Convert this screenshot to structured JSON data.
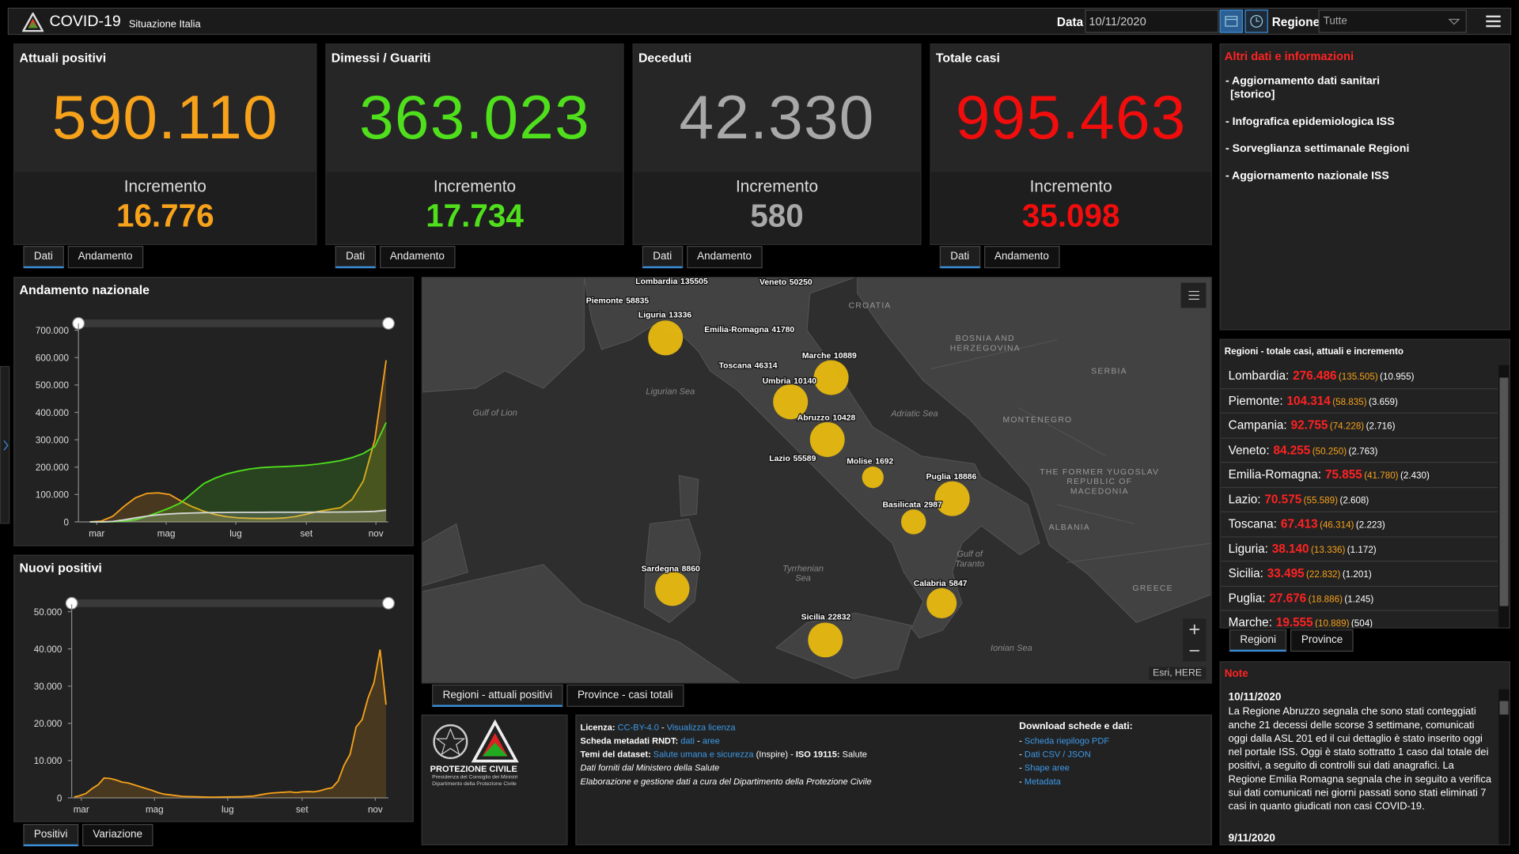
{
  "header": {
    "title": "COVID-19",
    "subtitle": "Situazione Italia",
    "date_label": "Data",
    "date": "10/11/2020",
    "region_label": "Regione",
    "region": "Tutte"
  },
  "cards": [
    {
      "title": "Attuali positivi",
      "value": "590.110",
      "increment_label": "Incremento",
      "increment": "16.776",
      "color": "#f7a21b",
      "tabs": [
        "Dati",
        "Andamento"
      ]
    },
    {
      "title": "Dimessi / Guariti",
      "value": "363.023",
      "increment_label": "Incremento",
      "increment": "17.734",
      "color": "#4fdf1c",
      "tabs": [
        "Dati",
        "Andamento"
      ]
    },
    {
      "title": "Deceduti",
      "value": "42.330",
      "increment_label": "Incremento",
      "increment": "580",
      "color": "#a8a8a8",
      "tabs": [
        "Dati",
        "Andamento"
      ]
    },
    {
      "title": "Totale casi",
      "value": "995.463",
      "increment_label": "Incremento",
      "increment": "35.098",
      "color": "#f20d0d",
      "tabs": [
        "Dati",
        "Andamento"
      ]
    }
  ],
  "info_links": {
    "title": "Altri dati e informazioni",
    "items": [
      [
        "- Aggiornamento dati sanitari",
        "[storico]"
      ],
      [
        "- Infografica epidemiologica ISS"
      ],
      [
        "- Sorveglianza settimanale Regioni"
      ],
      [
        "- Aggiornamento nazionale ISS"
      ]
    ]
  },
  "charts": [
    {
      "type": "line",
      "title": "Andamento nazionale",
      "x": [
        0,
        10,
        20,
        30,
        40,
        50,
        60,
        70,
        80,
        90,
        100,
        110,
        120,
        130,
        140,
        150,
        160,
        170,
        180,
        190,
        200,
        210,
        220,
        230,
        240,
        250,
        260
      ],
      "xlim": [
        -10,
        262
      ],
      "xticks": [
        {
          "value": 6,
          "label": "mar"
        },
        {
          "value": 67,
          "label": "mag"
        },
        {
          "value": 128,
          "label": "lug"
        },
        {
          "value": 190,
          "label": "set"
        },
        {
          "value": 251,
          "label": "nov"
        }
      ],
      "ylim": [
        0,
        725000
      ],
      "yticks": [
        0,
        {
          "value": 100000,
          "label": "100.000"
        },
        {
          "value": 200000,
          "label": "200.000"
        },
        {
          "value": 300000,
          "label": "300.000"
        },
        {
          "value": 400000,
          "label": "400.000"
        },
        {
          "value": 500000,
          "label": "500.000"
        },
        {
          "value": 600000,
          "label": "600.000"
        },
        {
          "value": 700000,
          "label": "700.000"
        }
      ],
      "area": true,
      "series": [
        {
          "color": "#f7a21b",
          "values": [
            200,
            3000,
            20000,
            57000,
            88000,
            104000,
            106000,
            100000,
            76000,
            55000,
            39000,
            27000,
            19000,
            15000,
            13000,
            12500,
            12500,
            14000,
            19000,
            28000,
            38000,
            45000,
            52000,
            82000,
            150000,
            300000,
            590110
          ]
        },
        {
          "color": "#4fdf1c",
          "values": [
            0,
            50,
            600,
            2500,
            8000,
            20000,
            35000,
            51000,
            70000,
            105000,
            140000,
            160000,
            175000,
            185000,
            193000,
            198000,
            200500,
            202000,
            204000,
            207000,
            211000,
            217000,
            224000,
            235000,
            250000,
            275000,
            363023
          ]
        },
        {
          "color": "#d8d8d8",
          "values": [
            7,
            150,
            1800,
            7500,
            15000,
            21000,
            26000,
            29000,
            31000,
            32500,
            33500,
            34300,
            34700,
            34900,
            35000,
            35100,
            35200,
            35300,
            35400,
            35500,
            35600,
            35800,
            36000,
            36300,
            37000,
            38600,
            42330
          ]
        }
      ]
    },
    {
      "type": "line",
      "title": "Nuovi positivi",
      "x": [
        0,
        5,
        10,
        15,
        20,
        25,
        30,
        35,
        40,
        45,
        50,
        55,
        60,
        65,
        70,
        75,
        80,
        85,
        90,
        95,
        100,
        105,
        110,
        115,
        120,
        125,
        130,
        135,
        140,
        145,
        150,
        155,
        160,
        165,
        170,
        175,
        180,
        185,
        190,
        195,
        200,
        205,
        210,
        215,
        220,
        225,
        230,
        235,
        240,
        245,
        250,
        255,
        260
      ],
      "xlim": [
        -2,
        262
      ],
      "xticks": [
        {
          "value": 6,
          "label": "mar"
        },
        {
          "value": 67,
          "label": "mag"
        },
        {
          "value": 128,
          "label": "lug"
        },
        {
          "value": 190,
          "label": "set"
        },
        {
          "value": 251,
          "label": "nov"
        }
      ],
      "ylim": [
        0,
        52000
      ],
      "yticks": [
        0,
        {
          "value": 10000,
          "label": "10.000"
        },
        {
          "value": 20000,
          "label": "20.000"
        },
        {
          "value": 30000,
          "label": "30.000"
        },
        {
          "value": 40000,
          "label": "40.000"
        },
        {
          "value": 50000,
          "label": "50.000"
        }
      ],
      "area": true,
      "series": [
        {
          "color": "#f7a21b",
          "values": [
            200,
            600,
            1200,
            2500,
            3500,
            5300,
            5200,
            4800,
            4200,
            4000,
            3500,
            3000,
            2500,
            2000,
            1400,
            1000,
            800,
            600,
            400,
            350,
            300,
            250,
            200,
            180,
            200,
            230,
            250,
            280,
            300,
            380,
            500,
            800,
            1100,
            1300,
            1400,
            1500,
            1600,
            1400,
            1600,
            1700,
            1600,
            1900,
            2400,
            2700,
            4500,
            8800,
            11700,
            19000,
            21000,
            26800,
            31000,
            39800,
            25000
          ]
        }
      ]
    }
  ],
  "chart_tabs": [
    "Positivi",
    "Variazione"
  ],
  "map": {
    "points": [
      {
        "name": "Lombardia",
        "value": 135505
      },
      {
        "name": "Veneto",
        "value": 50250
      },
      {
        "name": "Piemonte",
        "value": 58835
      },
      {
        "name": "Liguria",
        "value": 13336
      },
      {
        "name": "Emilia-Romagna",
        "value": 41780
      },
      {
        "name": "Toscana",
        "value": 46314
      },
      {
        "name": "Marche",
        "value": 10889
      },
      {
        "name": "Umbria",
        "value": 10140
      },
      {
        "name": "Abruzzo",
        "value": 10428
      },
      {
        "name": "Lazio",
        "value": 55589
      },
      {
        "name": "Molise",
        "value": 1692
      },
      {
        "name": "Puglia",
        "value": 18886
      },
      {
        "name": "Basilicata",
        "value": 2987
      },
      {
        "name": "Sardegna",
        "value": 8860
      },
      {
        "name": "Calabria",
        "value": 5847
      },
      {
        "name": "Sicilia",
        "value": 22832
      }
    ],
    "point_color": "#e8b90f",
    "places": [
      [
        "CROATIA"
      ],
      [
        "BOSNIA AND",
        "HERZEGOVINA"
      ],
      [
        "SERBIA"
      ],
      [
        "MONTENEGRO"
      ],
      [
        "ALBANIA"
      ],
      [
        "THE FORMER YUGOSLAV",
        "REPUBLIC OF",
        "MACEDONIA"
      ],
      [
        "GREECE"
      ]
    ],
    "seas": [
      [
        "Gulf of Lion"
      ],
      [
        "Ligurian Sea"
      ],
      [
        "Adriatic Sea"
      ],
      [
        "Tyrrhenian",
        "Sea"
      ],
      [
        "Gulf of",
        "Taranto"
      ],
      [
        "Ionian Sea"
      ]
    ],
    "attribution": "Esri, HERE",
    "tabs": [
      "Regioni - attuali positivi",
      "Province - casi totali"
    ]
  },
  "regions": {
    "title": "Regioni - totale casi, attuali e incremento",
    "rows": [
      {
        "name": "Lombardia:",
        "total": "276.486",
        "current": "(135.505)",
        "increment": "(10.955)"
      },
      {
        "name": "Piemonte:",
        "total": "104.314",
        "current": "(58.835)",
        "increment": "(3.659)"
      },
      {
        "name": "Campania:",
        "total": "92.755",
        "current": "(74.228)",
        "increment": "(2.716)"
      },
      {
        "name": "Veneto:",
        "total": "84.255",
        "current": "(50.250)",
        "increment": "(2.763)"
      },
      {
        "name": "Emilia-Romagna:",
        "total": "75.855",
        "current": "(41.780)",
        "increment": "(2.430)"
      },
      {
        "name": "Lazio:",
        "total": "70.575",
        "current": "(55.589)",
        "increment": "(2.608)"
      },
      {
        "name": "Toscana:",
        "total": "67.413",
        "current": "(46.314)",
        "increment": "(2.223)"
      },
      {
        "name": "Liguria:",
        "total": "38.140",
        "current": "(13.336)",
        "increment": "(1.172)"
      },
      {
        "name": "Sicilia:",
        "total": "33.495",
        "current": "(22.832)",
        "increment": "(1.201)"
      },
      {
        "name": "Puglia:",
        "total": "27.676",
        "current": "(18.886)",
        "increment": "(1.245)"
      },
      {
        "name": "Marche:",
        "total": "19.555",
        "current": "(10.889)",
        "increment": "(504)"
      }
    ],
    "tabs": [
      "Regioni",
      "Province"
    ]
  },
  "notes": {
    "title": "Note",
    "entries": [
      {
        "date": "10/11/2020",
        "text": "La Regione Abruzzo segnala che sono stati conteggiati anche 21 decessi delle scorse 3 settimane, comunicati oggi dalla ASL 201 ed il cui dettaglio è stato inserito oggi nel portale ISS. Oggi è stato sottratto 1 caso dal totale dei positivi, a seguito di controlli sui dati anagrafici. La Regione Emilia Romagna segnala che in seguito a verifica sui dati comunicati nei giorni passati sono stati eliminati 7 casi in quanto giudicati non casi COVID-19."
      },
      {
        "date": "9/11/2020"
      }
    ]
  },
  "logo": {
    "name": "PROTEZIONE CIVILE",
    "lines": [
      "Presidenza del Consiglio dei Ministri",
      "Dipartimento della Protezione Civile"
    ]
  },
  "info": {
    "lines": [
      [
        {
          "text": "Licenza: ",
          "style": "bold"
        },
        {
          "text": "CC-BY-4.0",
          "style": "link"
        },
        {
          "text": " - ",
          "style": "plain"
        },
        {
          "text": "Visualizza licenza",
          "style": "link"
        }
      ],
      [
        {
          "text": "Scheda metadati RNDT: ",
          "style": "bold"
        },
        {
          "text": "dati",
          "style": "link"
        },
        {
          "text": " - ",
          "style": "plain"
        },
        {
          "text": "aree",
          "style": "link"
        }
      ],
      [
        {
          "text": "Temi del dataset: ",
          "style": "bold"
        },
        {
          "text": "Salute umana e sicurezza",
          "style": "link"
        },
        {
          "text": " (Inspire) - ",
          "style": "plain"
        },
        {
          "text": "ISO 19115: ",
          "style": "bold"
        },
        {
          "text": "Salute",
          "style": "plain"
        }
      ],
      [
        {
          "text": "Dati forniti dal Ministero della Salute",
          "style": "italic"
        }
      ],
      [
        {
          "text": "Elaborazione e gestione dati a cura del Dipartimento della Protezione Civile",
          "style": "italic"
        }
      ]
    ],
    "download_title": "Download schede e dati:",
    "downloads": [
      [
        {
          "text": "- ",
          "style": "plain"
        },
        {
          "text": "Scheda riepilogo PDF",
          "style": "link"
        }
      ],
      [
        {
          "text": "- ",
          "style": "plain"
        },
        {
          "text": "Dati CSV / JSON",
          "style": "link"
        }
      ],
      [
        {
          "text": "- ",
          "style": "plain"
        },
        {
          "text": "Shape aree",
          "style": "link"
        }
      ],
      [
        {
          "text": "- ",
          "style": "plain"
        },
        {
          "text": "Metadata",
          "style": "link"
        }
      ]
    ]
  }
}
